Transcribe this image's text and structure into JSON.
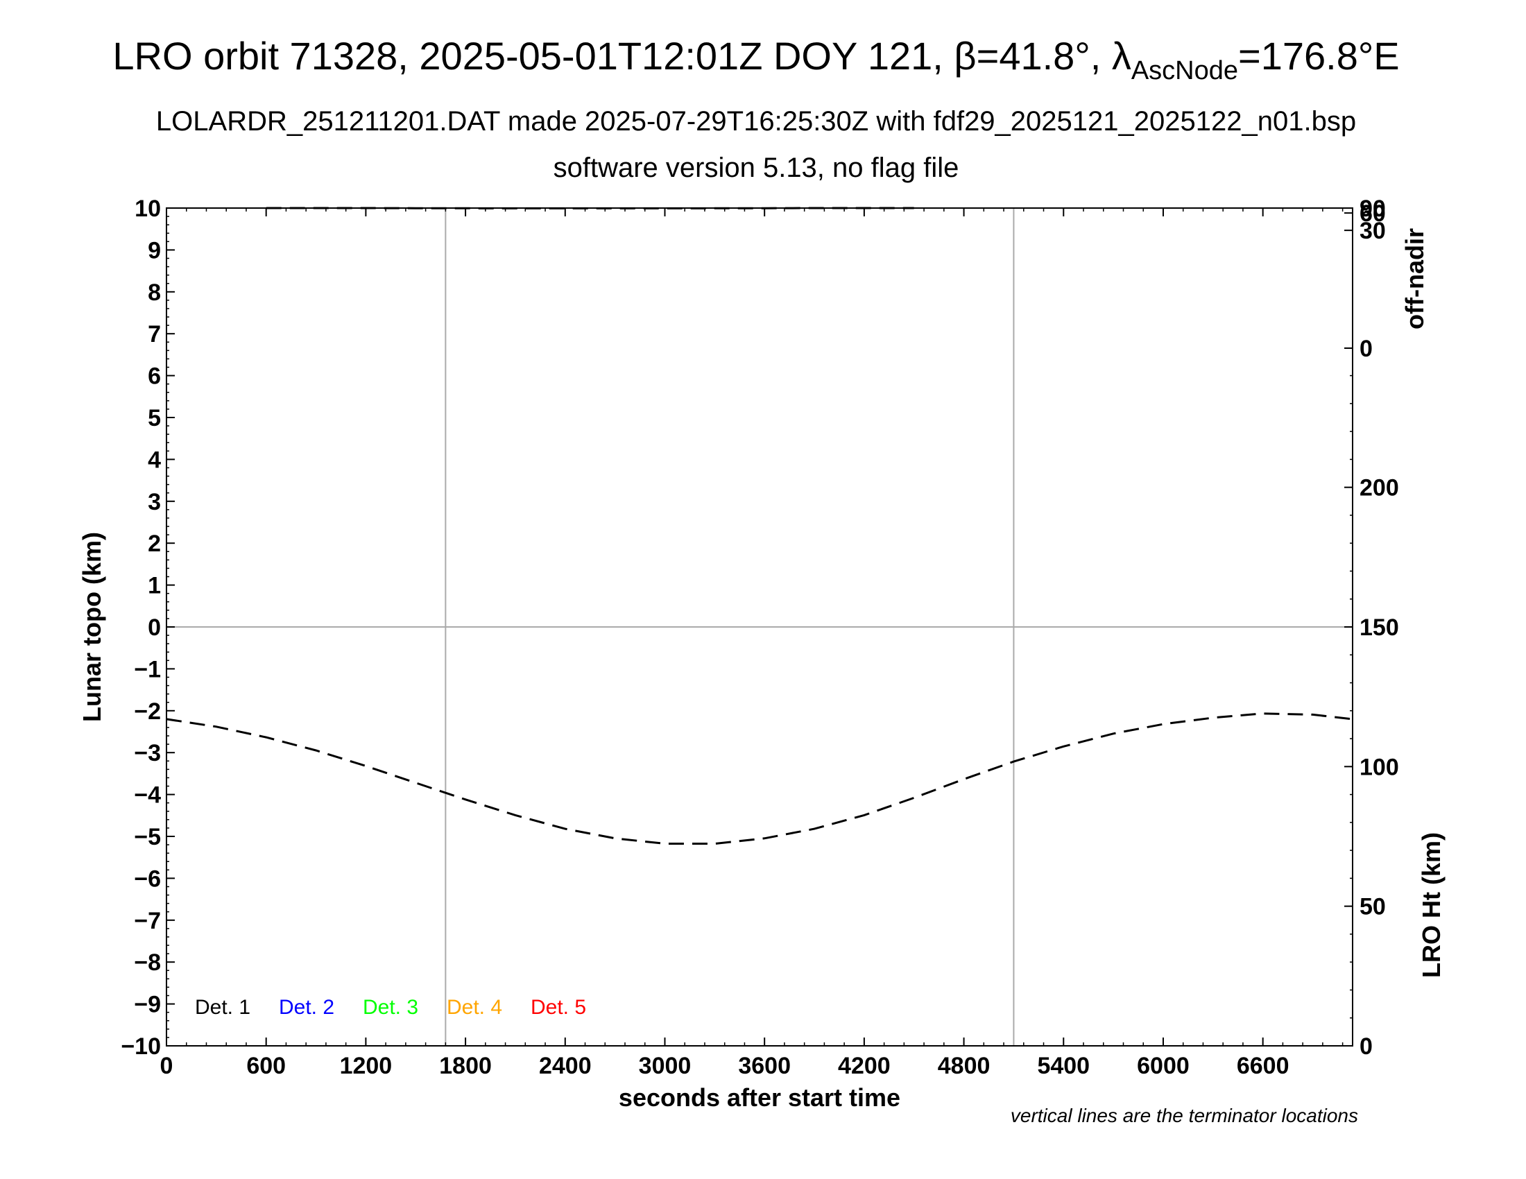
{
  "header": {
    "title_main": "LRO orbit 71328, 2025-05-01T12:01Z DOY 121, β=41.8°, λ",
    "title_sub": "AscNode",
    "title_tail": "=176.8°E",
    "subtitle": "LOLARDR_251211201.DAT made 2025-07-29T16:25:30Z with fdf29_2025121_2025122_n01.bsp",
    "version_line": "software version 5.13, no flag file"
  },
  "footnote": "vertical lines are the terminator locations",
  "colors": {
    "axis": "#000000",
    "grid": "#aaaaaa",
    "det1": "#000000",
    "det2": "#0000ff",
    "det3": "#00ff00",
    "det4": "#ffa500",
    "det5": "#ff0000"
  },
  "chart_data": {
    "type": "line",
    "title": "LRO orbit 71328, 2025-05-01T12:01Z DOY 121, β=41.8°, λAscNode=176.8°E",
    "xlabel": "seconds after start time",
    "ylabel": "Lunar topo (km)",
    "xlim": [
      0,
      7140
    ],
    "ylim": [
      -10,
      10
    ],
    "x_ticks": [
      0,
      600,
      1200,
      1800,
      2400,
      3000,
      3600,
      4200,
      4800,
      5400,
      6000,
      6600
    ],
    "y_ticks": [
      10,
      9,
      8,
      7,
      6,
      5,
      4,
      3,
      2,
      1,
      0,
      -1,
      -2,
      -3,
      -4,
      -5,
      -6,
      -7,
      -8,
      -9,
      -10
    ],
    "y_tick_labels": [
      "10",
      "9",
      "8",
      "7",
      "6",
      "5",
      "4",
      "3",
      "2",
      "1",
      "0",
      "−1",
      "−2",
      "−3",
      "−4",
      "−5",
      "−6",
      "−7",
      "−8",
      "−9",
      "−10"
    ],
    "grid": "terminator verticals and zero line",
    "terminator_lines_x": [
      1680,
      5100
    ],
    "zero_line_y": 0,
    "right_axis_ht": {
      "label": "LRO Ht (km)",
      "range": [
        0,
        300
      ],
      "ticks": [
        0,
        50,
        100,
        150,
        200
      ],
      "tick_labels": [
        "0",
        "50",
        "100",
        "150",
        "200"
      ]
    },
    "right_axis_offnadir": {
      "label": "off-nadir",
      "ticks": [
        0,
        30,
        60,
        90
      ],
      "tick_labels": [
        "0",
        "30",
        "60",
        "90"
      ]
    },
    "legend": {
      "placement": "bottom-left",
      "entries": [
        "Det. 1",
        "Det. 2",
        "Det. 3",
        "Det. 4",
        "Det. 5"
      ]
    },
    "series": [
      {
        "axis": "ht",
        "style": "dashed",
        "x": [
          0,
          300,
          600,
          900,
          1200,
          1500,
          1800,
          2100,
          2400,
          2700,
          3000,
          3300,
          3600,
          3900,
          4200,
          4500,
          4800,
          5100,
          5400,
          5700,
          6000,
          6300,
          6600,
          6900,
          7140
        ],
        "y": [
          117,
          114.3,
          110.5,
          105.8,
          100.2,
          94.2,
          88.2,
          82.6,
          77.7,
          74.3,
          72.4,
          72.4,
          74.3,
          77.7,
          82.6,
          88.8,
          95.5,
          101.8,
          107.2,
          111.8,
          115.2,
          117.5,
          119,
          118.6,
          117
        ]
      },
      {
        "axis": "offnadir",
        "style": "dashed",
        "x": [
          600,
          900,
          1200,
          1500,
          1800,
          2100,
          2400,
          2700,
          3000,
          3300,
          3600,
          3900,
          4200,
          4500
        ],
        "y": [
          90,
          89,
          87.5,
          85.5,
          84,
          83,
          82.5,
          82.5,
          83,
          84,
          85.5,
          87.5,
          89,
          90
        ]
      }
    ]
  }
}
